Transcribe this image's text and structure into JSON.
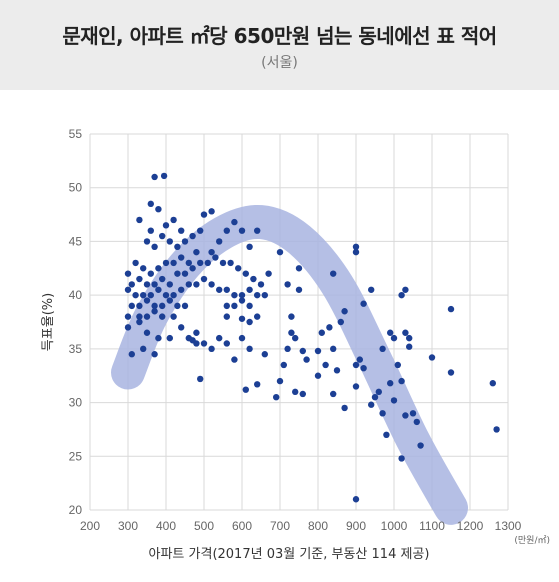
{
  "header": {
    "title": "문재인, 아파트 ㎡당 650만원 넘는 동네에선 표 적어",
    "subtitle": "(서울)"
  },
  "colors": {
    "header_bg": "#ececec",
    "point": "#1c3f94",
    "trend": "#a8b4e0",
    "grid": "#d9d9d9"
  },
  "chart_data": {
    "type": "scatter",
    "xlabel": "아파트 가격(2017년 03월 기준, 부동산 114 제공)",
    "ylabel": "득표율(%)",
    "unit_label": "(만원/㎡)",
    "xlim": [
      200,
      1300
    ],
    "ylim": [
      20,
      55
    ],
    "xticks": [
      "200",
      "300",
      "400",
      "500",
      "600",
      "700",
      "800",
      "900",
      "1000",
      "1100",
      "1200",
      "1300"
    ],
    "yticks": [
      "20",
      "25",
      "30",
      "35",
      "40",
      "45",
      "50",
      "55"
    ],
    "grid": true,
    "trend": [
      [
        300,
        32.8
      ],
      [
        360,
        38
      ],
      [
        450,
        42.8
      ],
      [
        550,
        45.8
      ],
      [
        650,
        46.8
      ],
      [
        750,
        45.2
      ],
      [
        850,
        41
      ],
      [
        950,
        34
      ],
      [
        1050,
        26.5
      ],
      [
        1150,
        20.2
      ]
    ],
    "points": [
      [
        370,
        51
      ],
      [
        395,
        51.1
      ],
      [
        360,
        48.5
      ],
      [
        380,
        48
      ],
      [
        330,
        47
      ],
      [
        360,
        46
      ],
      [
        400,
        46.5
      ],
      [
        420,
        47
      ],
      [
        440,
        46
      ],
      [
        350,
        45
      ],
      [
        370,
        44.5
      ],
      [
        390,
        45.5
      ],
      [
        410,
        45
      ],
      [
        430,
        44.5
      ],
      [
        450,
        45
      ],
      [
        470,
        45.5
      ],
      [
        490,
        46
      ],
      [
        500,
        47.5
      ],
      [
        520,
        47.8
      ],
      [
        540,
        45
      ],
      [
        560,
        46
      ],
      [
        580,
        46.8
      ],
      [
        600,
        46
      ],
      [
        620,
        44.5
      ],
      [
        640,
        46
      ],
      [
        520,
        44
      ],
      [
        480,
        44
      ],
      [
        460,
        43
      ],
      [
        440,
        43.5
      ],
      [
        420,
        43
      ],
      [
        400,
        43
      ],
      [
        380,
        42.5
      ],
      [
        360,
        42
      ],
      [
        340,
        42.5
      ],
      [
        320,
        43
      ],
      [
        300,
        42
      ],
      [
        310,
        41
      ],
      [
        330,
        41.5
      ],
      [
        350,
        41
      ],
      [
        370,
        41
      ],
      [
        390,
        41.5
      ],
      [
        410,
        41
      ],
      [
        430,
        42
      ],
      [
        450,
        42
      ],
      [
        470,
        42.5
      ],
      [
        490,
        43
      ],
      [
        510,
        43
      ],
      [
        530,
        43.5
      ],
      [
        550,
        43
      ],
      [
        570,
        43
      ],
      [
        590,
        42.5
      ],
      [
        610,
        42
      ],
      [
        630,
        41.5
      ],
      [
        650,
        41
      ],
      [
        670,
        42
      ],
      [
        300,
        40.5
      ],
      [
        320,
        40
      ],
      [
        340,
        40
      ],
      [
        360,
        40
      ],
      [
        380,
        40.5
      ],
      [
        400,
        40
      ],
      [
        420,
        40
      ],
      [
        440,
        40.5
      ],
      [
        460,
        41
      ],
      [
        480,
        41
      ],
      [
        500,
        41.5
      ],
      [
        520,
        41
      ],
      [
        540,
        40.5
      ],
      [
        560,
        40.5
      ],
      [
        580,
        40
      ],
      [
        600,
        40
      ],
      [
        620,
        40.5
      ],
      [
        640,
        40
      ],
      [
        660,
        40
      ],
      [
        310,
        39
      ],
      [
        330,
        39
      ],
      [
        350,
        39.5
      ],
      [
        370,
        39
      ],
      [
        390,
        39
      ],
      [
        410,
        39.5
      ],
      [
        430,
        39
      ],
      [
        450,
        39
      ],
      [
        560,
        39
      ],
      [
        580,
        39
      ],
      [
        600,
        39.5
      ],
      [
        620,
        39
      ],
      [
        300,
        38
      ],
      [
        330,
        38
      ],
      [
        350,
        38
      ],
      [
        370,
        38.5
      ],
      [
        390,
        38
      ],
      [
        420,
        38
      ],
      [
        560,
        38
      ],
      [
        600,
        37.8
      ],
      [
        620,
        37.5
      ],
      [
        640,
        38
      ],
      [
        300,
        37
      ],
      [
        330,
        37.5
      ],
      [
        350,
        36.5
      ],
      [
        380,
        36
      ],
      [
        410,
        36
      ],
      [
        460,
        36
      ],
      [
        480,
        35.5
      ],
      [
        500,
        35.5
      ],
      [
        540,
        36
      ],
      [
        560,
        35.5
      ],
      [
        600,
        36
      ],
      [
        620,
        35
      ],
      [
        340,
        35
      ],
      [
        370,
        34.5
      ],
      [
        310,
        34.5
      ],
      [
        440,
        37
      ],
      [
        470,
        35.8
      ],
      [
        480,
        36.5
      ],
      [
        520,
        35
      ],
      [
        580,
        34
      ],
      [
        610,
        31.2
      ],
      [
        640,
        31.7
      ],
      [
        660,
        34.5
      ],
      [
        490,
        32.2
      ],
      [
        700,
        44
      ],
      [
        720,
        41
      ],
      [
        730,
        38
      ],
      [
        740,
        36
      ],
      [
        750,
        40.5
      ],
      [
        760,
        34.8
      ],
      [
        720,
        35
      ],
      [
        710,
        33.5
      ],
      [
        700,
        32
      ],
      [
        690,
        30.5
      ],
      [
        740,
        31
      ],
      [
        760,
        30.8
      ],
      [
        730,
        36.5
      ],
      [
        750,
        42.5
      ],
      [
        800,
        34.8
      ],
      [
        820,
        33.5
      ],
      [
        840,
        35
      ],
      [
        850,
        33
      ],
      [
        830,
        37
      ],
      [
        860,
        37.5
      ],
      [
        870,
        29.5
      ],
      [
        840,
        30.8
      ],
      [
        840,
        42
      ],
      [
        900,
        44.5
      ],
      [
        900,
        44
      ],
      [
        910,
        34
      ],
      [
        900,
        33.5
      ],
      [
        920,
        33.2
      ],
      [
        900,
        31.5
      ],
      [
        920,
        39.2
      ],
      [
        940,
        40.5
      ],
      [
        940,
        29.8
      ],
      [
        960,
        31
      ],
      [
        970,
        29
      ],
      [
        970,
        35
      ],
      [
        980,
        27
      ],
      [
        990,
        36.5
      ],
      [
        1000,
        36
      ],
      [
        1010,
        33.5
      ],
      [
        1020,
        32
      ],
      [
        1020,
        40
      ],
      [
        1030,
        40.5
      ],
      [
        1030,
        36.5
      ],
      [
        1040,
        36
      ],
      [
        1040,
        35.2
      ],
      [
        1020,
        24.8
      ],
      [
        1030,
        28.8
      ],
      [
        1050,
        29
      ],
      [
        1060,
        28.2
      ],
      [
        1070,
        26
      ],
      [
        1100,
        34.2
      ],
      [
        1150,
        38.7
      ],
      [
        1150,
        32.8
      ],
      [
        1260,
        31.8
      ],
      [
        1270,
        27.5
      ],
      [
        900,
        21
      ],
      [
        770,
        34
      ],
      [
        800,
        32.5
      ],
      [
        810,
        36.5
      ],
      [
        870,
        38.5
      ],
      [
        950,
        30.5
      ],
      [
        1000,
        30.2
      ],
      [
        990,
        31.8
      ]
    ]
  }
}
